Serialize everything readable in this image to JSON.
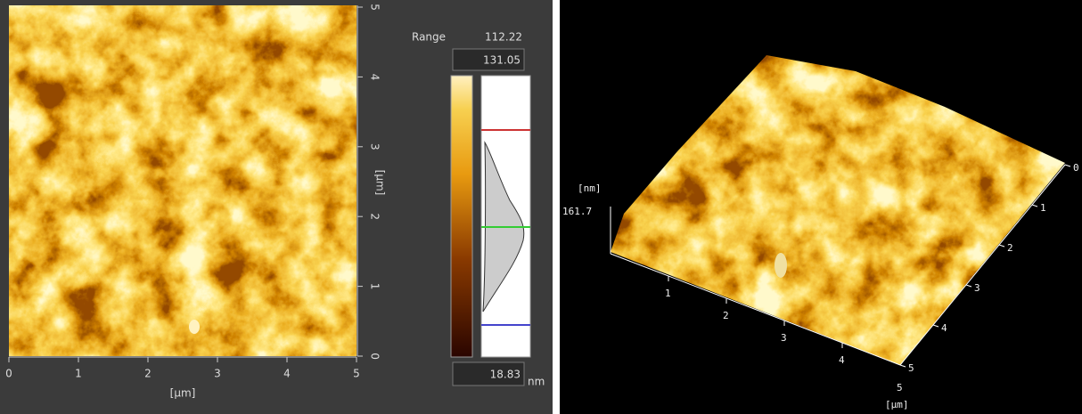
{
  "left_panel": {
    "x_axis": {
      "label": "[µm]",
      "ticks": [
        "0",
        "1",
        "2",
        "3",
        "4",
        "5"
      ]
    },
    "y_axis": {
      "label": "[µm]",
      "ticks": [
        "0",
        "1",
        "2",
        "3",
        "4",
        "5"
      ]
    }
  },
  "scale": {
    "range_label": "Range",
    "range_value": "112.22",
    "max": "131.05",
    "min": "18.83",
    "unit": "nm"
  },
  "right_panel": {
    "z_unit": "[nm]",
    "z_max": "161.7",
    "front_ticks": [
      "1",
      "2",
      "3",
      "4"
    ],
    "side_ticks": [
      "0",
      "1",
      "2",
      "3",
      "4",
      "5"
    ],
    "corner_label": "5",
    "axis_label": "[µm]"
  }
}
